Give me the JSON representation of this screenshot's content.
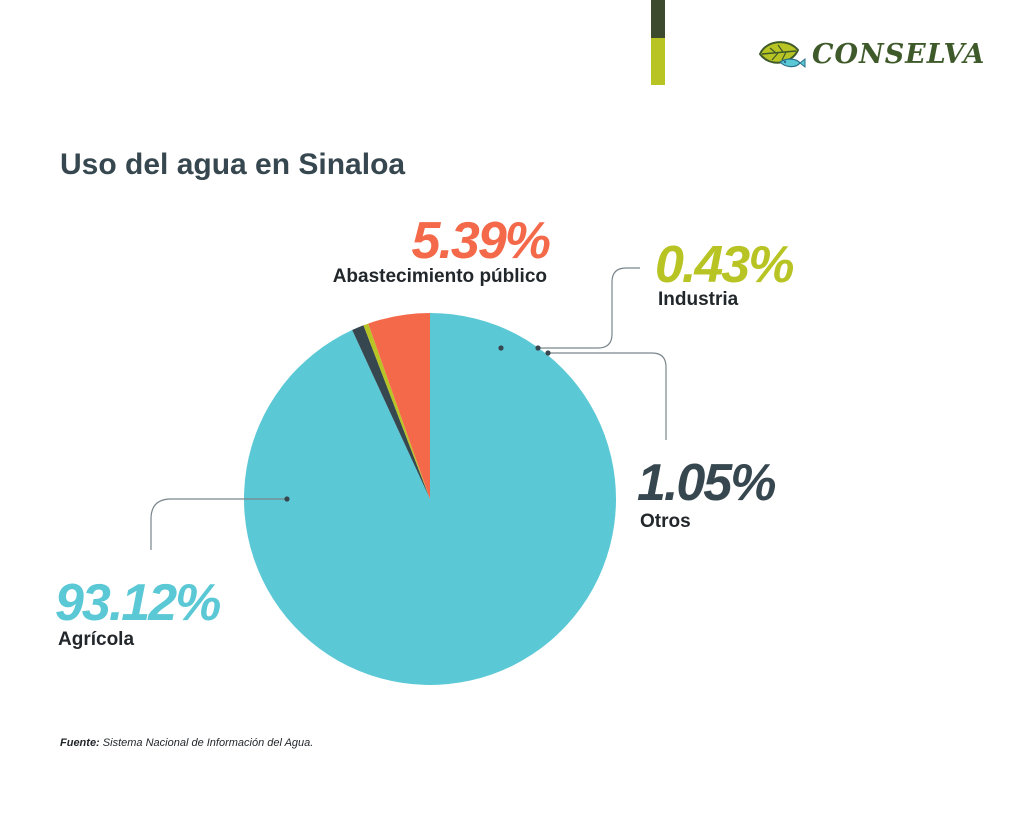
{
  "brand": {
    "name": "CONSELVA",
    "colors": {
      "dark_bar": "#3d4a2d",
      "lime_bar": "#b8c424",
      "logo_text": "#3f5a2a"
    },
    "icon": "leaf-fish-icon"
  },
  "title": "Uso del agua en Sinaloa",
  "chart_data": {
    "type": "pie",
    "title": "Uso del agua en Sinaloa",
    "start_angle_deg": 90,
    "direction": "clockwise",
    "slices": [
      {
        "label": "Agrícola",
        "value": 93.12,
        "pct_label": "93.12%",
        "color": "#5bc8d5"
      },
      {
        "label": "Otros",
        "value": 1.05,
        "pct_label": "1.05%",
        "color": "#37474f"
      },
      {
        "label": "Industria",
        "value": 0.43,
        "pct_label": "0.43%",
        "color": "#b8c424"
      },
      {
        "label": "Abastecimiento público",
        "value": 5.39,
        "pct_label": "5.39%",
        "color": "#f4694a"
      }
    ]
  },
  "source": {
    "label": "Fuente:",
    "text": "Sistema Nacional de Información del Agua."
  }
}
